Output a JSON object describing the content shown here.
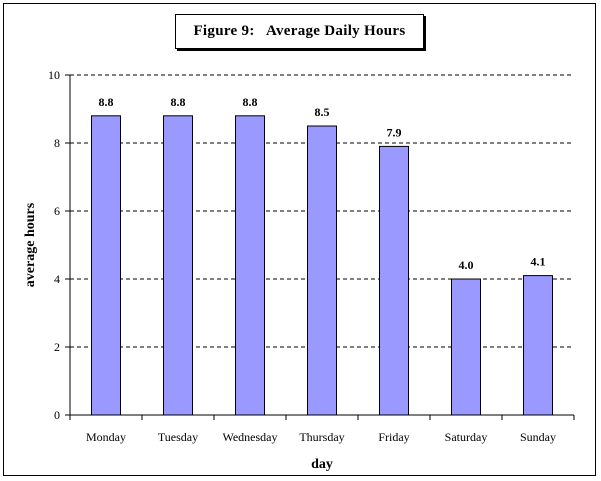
{
  "chart_data": {
    "type": "bar",
    "title": "Figure 9:   Average Daily Hours",
    "xlabel": "day",
    "ylabel": "average hours",
    "categories": [
      "Monday",
      "Tuesday",
      "Wednesday",
      "Thursday",
      "Friday",
      "Saturday",
      "Sunday"
    ],
    "values": [
      8.8,
      8.8,
      8.8,
      8.5,
      7.9,
      4.0,
      4.1
    ],
    "data_labels": [
      "8.8",
      "8.8",
      "8.8",
      "8.5",
      "7.9",
      "4.0",
      "4.1"
    ],
    "ylim": [
      0,
      10
    ],
    "yticks": [
      "0",
      "2",
      "4",
      "6",
      "8",
      "10"
    ],
    "grid": "horizontal dashed",
    "bar_color": "#9999ff",
    "bar_outline": "#000000"
  }
}
